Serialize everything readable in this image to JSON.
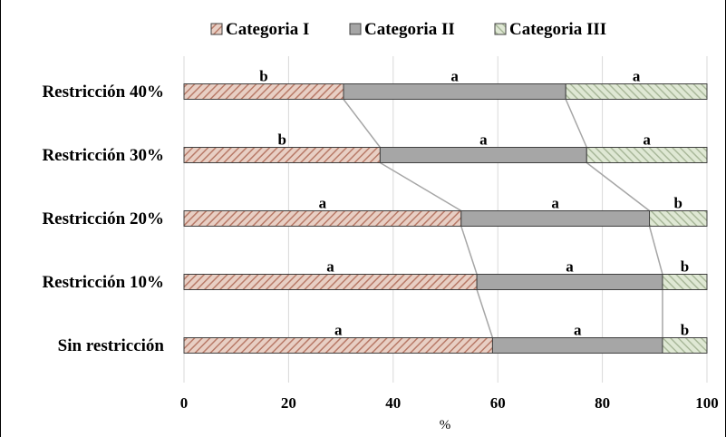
{
  "colors": {
    "cat1": "#e8cfc4",
    "cat1_hatch": "#b87a68",
    "cat2": "#a6a6a6",
    "cat3": "#dfe8d4",
    "cat3_hatch": "#a9b89a",
    "grid": "#d9d9d9",
    "connector": "#a6a6a6",
    "bar_border": "#404040"
  },
  "chart_data": {
    "type": "bar",
    "orientation": "horizontal",
    "stacked": true,
    "categories": [
      "Restricción 40%",
      "Restricción 30%",
      "Restricción 20%",
      "Restricción 10%",
      "Sin restricción"
    ],
    "series": [
      {
        "name": "Categoria I",
        "values": [
          30.5,
          37.5,
          53,
          56,
          59
        ],
        "labels": [
          "b",
          "b",
          "a",
          "a",
          "a"
        ]
      },
      {
        "name": "Categoria II",
        "values": [
          42.5,
          39.5,
          36,
          35.5,
          32.5
        ],
        "labels": [
          "a",
          "a",
          "a",
          "a",
          "a"
        ]
      },
      {
        "name": "Categoria III",
        "values": [
          27,
          23,
          11,
          8.5,
          8.5
        ],
        "labels": [
          "a",
          "a",
          "b",
          "b",
          "b"
        ]
      }
    ],
    "xlabel": "%",
    "xlim": [
      0,
      100
    ],
    "xticks": [
      "0",
      "20",
      "40",
      "60",
      "80",
      "100"
    ],
    "grid": true,
    "legend_position": "top",
    "series_lines": true
  }
}
